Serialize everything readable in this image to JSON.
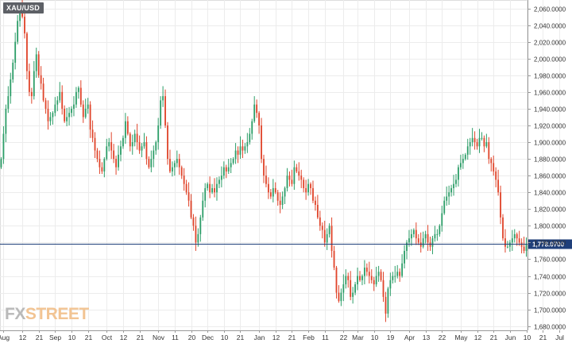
{
  "symbol": "XAU/USD",
  "watermark": {
    "part1": "FX",
    "part2": "STREET"
  },
  "current_price_label": "1,778.0700",
  "colors": {
    "up": "#2e9e69",
    "down": "#e0452b",
    "price_line": "#1f3f7a",
    "grid": "#ececec",
    "axis": "#999999"
  },
  "chart_data": {
    "type": "candlestick",
    "title": "",
    "xlabel": "",
    "ylabel": "",
    "ylim": [
      1675,
      2070
    ],
    "grid": true,
    "current_price": 1778.07,
    "y_ticks": [
      "2,060.0000",
      "2,040.0000",
      "2,020.0000",
      "2,000.0000",
      "1,980.0000",
      "1,960.0000",
      "1,940.0000",
      "1,920.0000",
      "1,900.0000",
      "1,880.0000",
      "1,860.0000",
      "1,840.0000",
      "1,820.0000",
      "1,800.0000",
      "1,780.0000",
      "1,760.0000",
      "1,740.0000",
      "1,720.0000",
      "1,700.0000",
      "1,680.0000"
    ],
    "y_tick_values": [
      2060,
      2040,
      2020,
      2000,
      1980,
      1960,
      1940,
      1920,
      1900,
      1880,
      1860,
      1840,
      1820,
      1800,
      1780,
      1760,
      1740,
      1720,
      1700,
      1680
    ],
    "x_ticks": [
      {
        "label": "Aug",
        "index": 1
      },
      {
        "label": "12",
        "index": 9
      },
      {
        "label": "21",
        "index": 16
      },
      {
        "label": "Sep",
        "index": 23
      },
      {
        "label": "10",
        "index": 30
      },
      {
        "label": "21",
        "index": 37
      },
      {
        "label": "Oct",
        "index": 45
      },
      {
        "label": "12",
        "index": 52
      },
      {
        "label": "21",
        "index": 59
      },
      {
        "label": "Nov",
        "index": 67
      },
      {
        "label": "11",
        "index": 74
      },
      {
        "label": "20",
        "index": 81
      },
      {
        "label": "Dec",
        "index": 88
      },
      {
        "label": "10",
        "index": 95
      },
      {
        "label": "21",
        "index": 102
      },
      {
        "label": "Jan",
        "index": 110
      },
      {
        "label": "12",
        "index": 117
      },
      {
        "label": "21",
        "index": 124
      },
      {
        "label": "Feb",
        "index": 131
      },
      {
        "label": "11",
        "index": 138
      },
      {
        "label": "22",
        "index": 146
      },
      {
        "label": "Mar",
        "index": 152
      },
      {
        "label": "10",
        "index": 159
      },
      {
        "label": "19",
        "index": 166
      },
      {
        "label": "Apr",
        "index": 174
      },
      {
        "label": "13",
        "index": 181
      },
      {
        "label": "22",
        "index": 188
      },
      {
        "label": "May",
        "index": 196
      },
      {
        "label": "12",
        "index": 203
      },
      {
        "label": "21",
        "index": 210
      },
      {
        "label": "Jun",
        "index": 217
      },
      {
        "label": "10",
        "index": 224
      },
      {
        "label": "21",
        "index": 231
      },
      {
        "label": "Jul",
        "index": 238
      }
    ],
    "close": [
      1880,
      1910,
      1940,
      1955,
      1975,
      1995,
      2020,
      2045,
      2060,
      2050,
      2030,
      1985,
      1960,
      1955,
      1985,
      2005,
      1980,
      1970,
      1950,
      1940,
      1925,
      1930,
      1935,
      1945,
      1950,
      1960,
      1940,
      1925,
      1930,
      1935,
      1940,
      1945,
      1960,
      1965,
      1945,
      1930,
      1940,
      1945,
      1915,
      1905,
      1890,
      1880,
      1870,
      1865,
      1880,
      1895,
      1900,
      1890,
      1880,
      1870,
      1885,
      1895,
      1905,
      1925,
      1910,
      1895,
      1900,
      1910,
      1900,
      1890,
      1895,
      1900,
      1880,
      1870,
      1880,
      1890,
      1900,
      1920,
      1950,
      1955,
      1920,
      1880,
      1865,
      1870,
      1875,
      1880,
      1870,
      1860,
      1850,
      1840,
      1830,
      1810,
      1800,
      1780,
      1790,
      1810,
      1830,
      1845,
      1850,
      1840,
      1845,
      1840,
      1850,
      1855,
      1860,
      1870,
      1865,
      1870,
      1875,
      1880,
      1890,
      1885,
      1895,
      1890,
      1895,
      1900,
      1910,
      1925,
      1945,
      1935,
      1920,
      1880,
      1860,
      1850,
      1840,
      1835,
      1845,
      1840,
      1830,
      1825,
      1835,
      1845,
      1860,
      1855,
      1850,
      1870,
      1865,
      1860,
      1855,
      1845,
      1840,
      1850,
      1845,
      1830,
      1825,
      1810,
      1800,
      1795,
      1780,
      1790,
      1800,
      1770,
      1750,
      1720,
      1710,
      1720,
      1730,
      1740,
      1735,
      1715,
      1720,
      1730,
      1740,
      1735,
      1740,
      1750,
      1745,
      1740,
      1735,
      1730,
      1740,
      1745,
      1735,
      1715,
      1695,
      1725,
      1735,
      1740,
      1740,
      1745,
      1740,
      1755,
      1770,
      1780,
      1785,
      1790,
      1795,
      1785,
      1780,
      1775,
      1785,
      1790,
      1780,
      1775,
      1785,
      1790,
      1790,
      1800,
      1815,
      1830,
      1835,
      1840,
      1845,
      1850,
      1855,
      1870,
      1875,
      1880,
      1885,
      1895,
      1900,
      1905,
      1900,
      1895,
      1905,
      1905,
      1895,
      1900,
      1880,
      1875,
      1865,
      1855,
      1840,
      1810,
      1785,
      1775,
      1775,
      1780,
      1785,
      1790,
      1785,
      1780,
      1775,
      1770,
      1778
    ]
  }
}
